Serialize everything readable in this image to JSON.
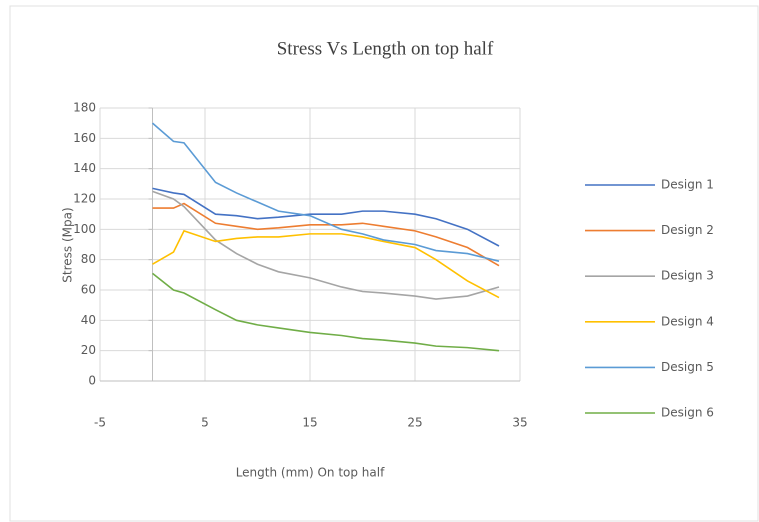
{
  "chart_data": {
    "type": "line",
    "title": "Stress Vs Length on top half",
    "x_label": "Length (mm)  On top  half",
    "y_label": "Stress (Mpa)",
    "x": [
      0,
      2,
      3,
      6,
      8,
      10,
      12,
      15,
      18,
      20,
      22,
      25,
      27,
      30,
      33
    ],
    "series": [
      {
        "name": "Design 1",
        "color": "#4472c4",
        "values": [
          127,
          124,
          123,
          110,
          109,
          107,
          108,
          110,
          110,
          112,
          112,
          110,
          107,
          100,
          89
        ]
      },
      {
        "name": "Design 2",
        "color": "#ed7d31",
        "values": [
          114,
          114,
          117,
          104,
          102,
          100,
          101,
          103,
          103,
          104,
          102,
          99,
          95,
          88,
          76
        ]
      },
      {
        "name": "Design 3",
        "color": "#a5a5a5",
        "values": [
          125,
          120,
          115,
          93,
          84,
          77,
          72,
          68,
          62,
          59,
          58,
          56,
          54,
          56,
          62
        ]
      },
      {
        "name": "Design 4",
        "color": "#ffc000",
        "values": [
          77,
          85,
          99,
          92,
          94,
          95,
          95,
          97,
          97,
          95,
          92,
          88,
          80,
          66,
          55
        ]
      },
      {
        "name": "Design 5",
        "color": "#5b9bd5",
        "values": [
          170,
          158,
          157,
          131,
          124,
          118,
          112,
          109,
          100,
          97,
          93,
          90,
          86,
          84,
          79
        ]
      },
      {
        "name": "Design 6",
        "color": "#70ad47",
        "values": [
          71,
          60,
          58,
          47,
          40,
          37,
          35,
          32,
          30,
          28,
          27,
          25,
          23,
          22,
          20
        ]
      }
    ],
    "xlim": [
      -5,
      35
    ],
    "xticks": [
      -5,
      5,
      15,
      25,
      35
    ],
    "ylim": [
      0,
      180
    ],
    "yticks": [
      0,
      20,
      40,
      60,
      80,
      100,
      120,
      140,
      160,
      180
    ],
    "grid": true,
    "legend": "right"
  }
}
